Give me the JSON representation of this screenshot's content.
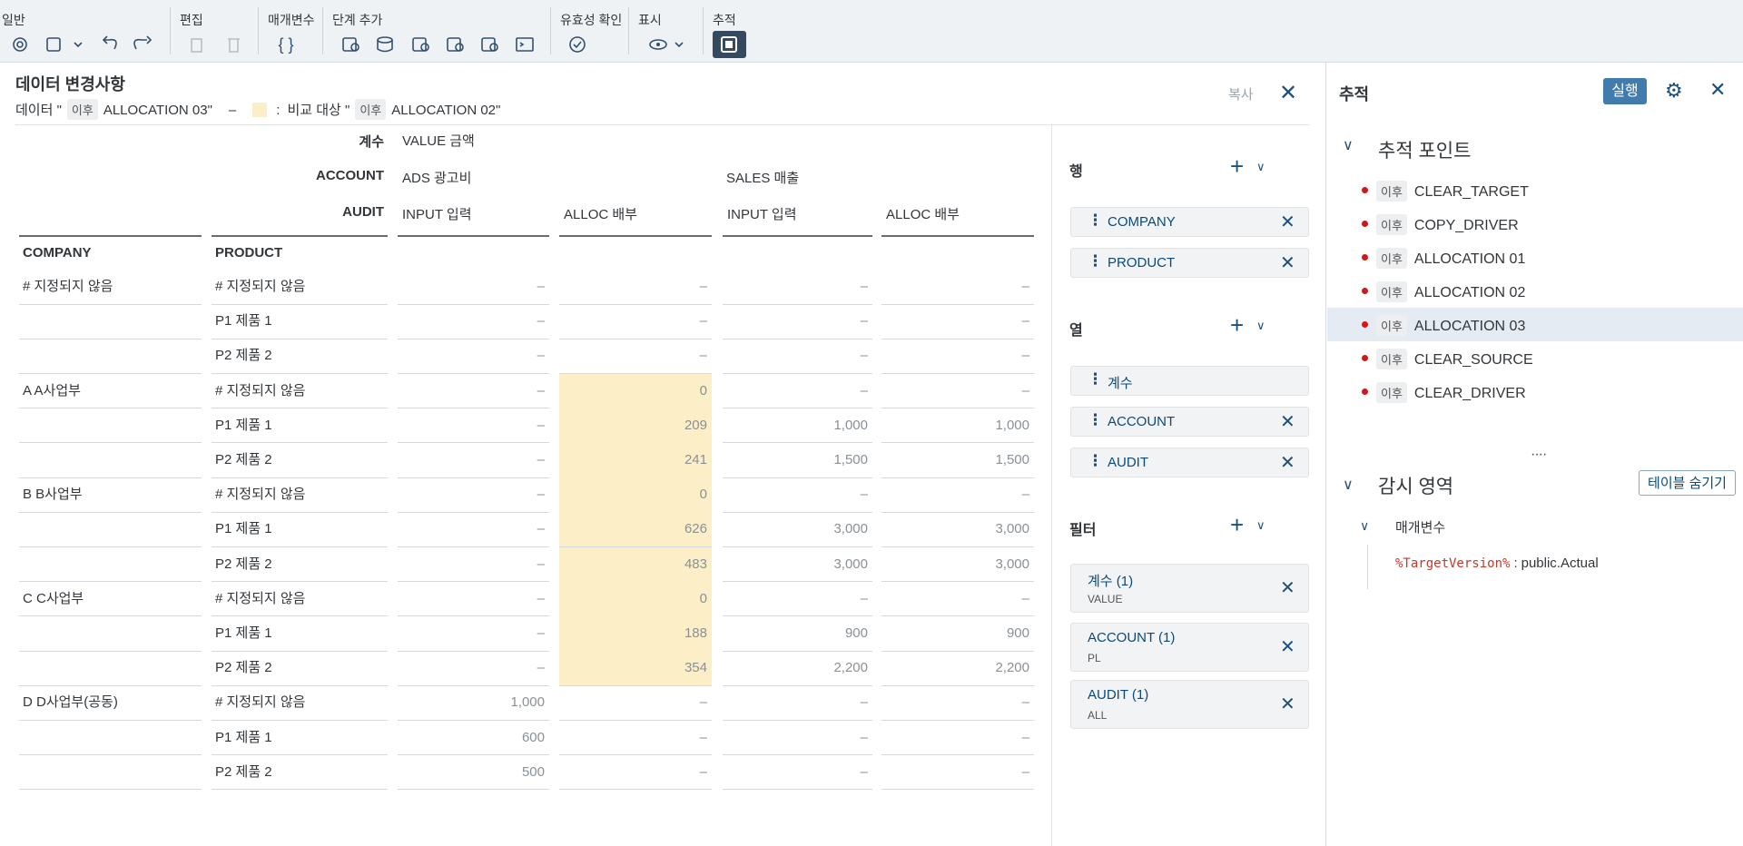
{
  "toolbar": {
    "groups": [
      "일반",
      "편집",
      "매개변수",
      "단계 추가",
      "유효성 확인",
      "표시",
      "추적"
    ]
  },
  "changes": {
    "title": "데이터 변경사항",
    "subtitle": {
      "data": "데이터 \"",
      "tag1": "이후",
      "name1": "ALLOCATION 03\"",
      "dash": "–",
      "colon": ":",
      "compare": "비교 대상 \"",
      "tag2": "이후",
      "name2": "ALLOCATION 02\""
    },
    "copy": "복사"
  },
  "table": {
    "dims": [
      "계수",
      "ACCOUNT",
      "AUDIT"
    ],
    "measure": "VALUE 금액",
    "accounts": [
      "ADS 광고비",
      "SALES 매출"
    ],
    "audits": [
      "INPUT 입력",
      "ALLOC 배부",
      "INPUT 입력",
      "ALLOC 배부"
    ],
    "row_headers": [
      "COMPANY",
      "PRODUCT"
    ],
    "rows": [
      {
        "company": "# 지정되지 않음",
        "product": "# 지정되지 않음",
        "cells": [
          "–",
          "–",
          "–",
          "–"
        ],
        "highlight": [
          false,
          false,
          false,
          false
        ]
      },
      {
        "company": null,
        "product": "P1 제품 1",
        "cells": [
          "–",
          "–",
          "–",
          "–"
        ],
        "highlight": [
          false,
          false,
          false,
          false
        ]
      },
      {
        "company": null,
        "product": "P2 제품 2",
        "cells": [
          "–",
          "–",
          "–",
          "–"
        ],
        "highlight": [
          false,
          false,
          false,
          false
        ]
      },
      {
        "company": "A A사업부",
        "product": "# 지정되지 않음",
        "cells": [
          "–",
          "0",
          "–",
          "–"
        ],
        "highlight": [
          false,
          true,
          false,
          false
        ]
      },
      {
        "company": null,
        "product": "P1 제품 1",
        "cells": [
          "–",
          "209",
          "1,000",
          "1,000"
        ],
        "highlight": [
          false,
          true,
          false,
          false
        ]
      },
      {
        "company": null,
        "product": "P2 제품 2",
        "cells": [
          "–",
          "241",
          "1,500",
          "1,500"
        ],
        "highlight": [
          false,
          true,
          false,
          false
        ]
      },
      {
        "company": "B B사업부",
        "product": "# 지정되지 않음",
        "cells": [
          "–",
          "0",
          "–",
          "–"
        ],
        "highlight": [
          false,
          true,
          false,
          false
        ]
      },
      {
        "company": null,
        "product": "P1 제품 1",
        "cells": [
          "–",
          "626",
          "3,000",
          "3,000"
        ],
        "highlight": [
          false,
          true,
          false,
          false
        ]
      },
      {
        "company": null,
        "product": "P2 제품 2",
        "cells": [
          "–",
          "483",
          "3,000",
          "3,000"
        ],
        "highlight": [
          false,
          true,
          false,
          false
        ]
      },
      {
        "company": "C C사업부",
        "product": "# 지정되지 않음",
        "cells": [
          "–",
          "0",
          "–",
          "–"
        ],
        "highlight": [
          false,
          true,
          false,
          false
        ]
      },
      {
        "company": null,
        "product": "P1 제품 1",
        "cells": [
          "–",
          "188",
          "900",
          "900"
        ],
        "highlight": [
          false,
          true,
          false,
          false
        ]
      },
      {
        "company": null,
        "product": "P2 제품 2",
        "cells": [
          "–",
          "354",
          "2,200",
          "2,200"
        ],
        "highlight": [
          false,
          true,
          false,
          false
        ]
      },
      {
        "company": "D D사업부(공동)",
        "product": "# 지정되지 않음",
        "cells": [
          "1,000",
          "–",
          "–",
          "–"
        ],
        "highlight": [
          false,
          false,
          false,
          false
        ]
      },
      {
        "company": null,
        "product": "P1 제품 1",
        "cells": [
          "600",
          "–",
          "–",
          "–"
        ],
        "highlight": [
          false,
          false,
          false,
          false
        ]
      },
      {
        "company": null,
        "product": "P2 제품 2",
        "cells": [
          "500",
          "–",
          "–",
          "–"
        ],
        "highlight": [
          false,
          false,
          false,
          false
        ]
      }
    ]
  },
  "builder": {
    "rows": {
      "title": "행",
      "items": [
        {
          "label": "COMPANY",
          "removable": true
        },
        {
          "label": "PRODUCT",
          "removable": true
        }
      ]
    },
    "columns": {
      "title": "열",
      "items": [
        {
          "label": "계수",
          "removable": false
        },
        {
          "label": "ACCOUNT",
          "removable": true
        },
        {
          "label": "AUDIT",
          "removable": true
        }
      ]
    },
    "filters": {
      "title": "필터",
      "items": [
        {
          "label": "계수 (1)",
          "sub": "VALUE"
        },
        {
          "label": "ACCOUNT (1)",
          "sub": "PL"
        },
        {
          "label": "AUDIT (1)",
          "sub": "ALL"
        }
      ]
    }
  },
  "trace": {
    "title": "추적",
    "run": "실행",
    "points_title": "추적 포인트",
    "points": [
      {
        "tag": "이후",
        "name": "CLEAR_TARGET"
      },
      {
        "tag": "이후",
        "name": "COPY_DRIVER"
      },
      {
        "tag": "이후",
        "name": "ALLOCATION 01"
      },
      {
        "tag": "이후",
        "name": "ALLOCATION 02"
      },
      {
        "tag": "이후",
        "name": "ALLOCATION 03"
      },
      {
        "tag": "이후",
        "name": "CLEAR_SOURCE"
      },
      {
        "tag": "이후",
        "name": "CLEAR_DRIVER"
      }
    ],
    "selected": 4,
    "watch_title": "감시 영역",
    "hide_table": "테이블 숨기기",
    "params_title": "매개변수",
    "param": {
      "key": "%TargetVersion%",
      "sep": ":",
      "value": "public.Actual"
    }
  }
}
